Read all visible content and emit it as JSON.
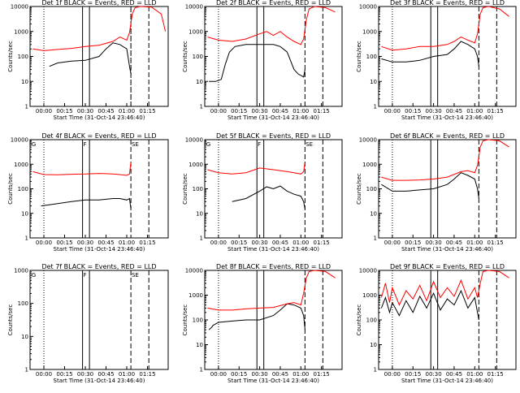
{
  "y_axis_label": "Counts/sec",
  "x_axis_label": "Start Time (31-Oct-14 23:46:40)",
  "x_tick_labels": [
    "00:00",
    "00:15",
    "00:30",
    "00:45",
    "01:00",
    "01:15"
  ],
  "y_tick_labels": [
    "1",
    "10",
    "100",
    "1000",
    "10000"
  ],
  "chart_data": [
    {
      "type": "line",
      "title": "Det 1f BLACK = Events, RED = LLD",
      "ylim": [
        1,
        10000
      ],
      "xlim_minutes": [
        -10,
        90
      ],
      "log_y": true,
      "markers": [],
      "dotted_lines": [
        0,
        63
      ],
      "solid_lines": [
        28,
        33
      ],
      "dashed_lines": [
        63,
        76
      ],
      "series": [
        {
          "name": "BLACK",
          "color": "#000000",
          "x": [
            4,
            10,
            20,
            30,
            40,
            45,
            50,
            55,
            60,
            62,
            63
          ],
          "y": [
            40,
            55,
            65,
            70,
            100,
            200,
            350,
            300,
            200,
            40,
            20
          ]
        },
        {
          "name": "RED",
          "color": "#ff0000",
          "x": [
            -8,
            0,
            10,
            20,
            30,
            40,
            50,
            55,
            60,
            62,
            64,
            66,
            70,
            78,
            85,
            88
          ],
          "y": [
            200,
            170,
            190,
            210,
            250,
            280,
            400,
            600,
            450,
            900,
            5000,
            9000,
            10000,
            9500,
            5000,
            1000
          ]
        }
      ]
    },
    {
      "type": "line",
      "title": "Det 2f BLACK = Events, RED = LLD",
      "ylim": [
        1,
        10000
      ],
      "xlim_minutes": [
        -10,
        90
      ],
      "log_y": true,
      "markers": [],
      "dotted_lines": [
        0
      ],
      "solid_lines": [
        28,
        33
      ],
      "dashed_lines": [
        63,
        76
      ],
      "series": [
        {
          "name": "BLACK",
          "color": "#000000",
          "x": [
            -7,
            -2,
            2,
            5,
            8,
            12,
            20,
            30,
            40,
            45,
            50,
            55,
            58,
            62,
            63
          ],
          "y": [
            10,
            10,
            12,
            50,
            150,
            250,
            300,
            300,
            300,
            250,
            150,
            30,
            20,
            15,
            30
          ]
        },
        {
          "name": "RED",
          "color": "#ff0000",
          "x": [
            -8,
            0,
            10,
            20,
            30,
            35,
            40,
            45,
            50,
            55,
            60,
            62,
            64,
            66,
            70,
            78,
            85
          ],
          "y": [
            600,
            450,
            400,
            500,
            800,
            1000,
            700,
            1000,
            600,
            400,
            300,
            500,
            3000,
            8000,
            10000,
            9000,
            6000
          ]
        }
      ]
    },
    {
      "type": "line",
      "title": "Det 3f BLACK = Events, RED = LLD",
      "ylim": [
        1,
        10000
      ],
      "xlim_minutes": [
        -10,
        90
      ],
      "log_y": true,
      "markers": [],
      "dotted_lines": [
        0
      ],
      "solid_lines": [
        28,
        33
      ],
      "dashed_lines": [
        63,
        76
      ],
      "series": [
        {
          "name": "BLACK",
          "color": "#000000",
          "x": [
            -8,
            0,
            10,
            20,
            30,
            40,
            45,
            50,
            55,
            60,
            62,
            63
          ],
          "y": [
            80,
            60,
            60,
            70,
            100,
            120,
            200,
            400,
            300,
            200,
            100,
            40
          ]
        },
        {
          "name": "RED",
          "color": "#ff0000",
          "x": [
            -8,
            0,
            10,
            20,
            30,
            40,
            45,
            50,
            55,
            60,
            62,
            64,
            66,
            70,
            78,
            85
          ],
          "y": [
            250,
            180,
            200,
            250,
            250,
            300,
            400,
            600,
            450,
            350,
            800,
            5000,
            9000,
            10000,
            8000,
            4000
          ]
        }
      ]
    },
    {
      "type": "line",
      "title": "Det 4f BLACK = Events, RED = LLD",
      "ylim": [
        1,
        10000
      ],
      "xlim_minutes": [
        -10,
        90
      ],
      "log_y": true,
      "markers": [
        "G",
        "F",
        "SE"
      ],
      "dotted_lines": [
        0
      ],
      "solid_lines": [
        28,
        33
      ],
      "dashed_lines": [
        63,
        76
      ],
      "series": [
        {
          "name": "BLACK",
          "color": "#000000",
          "x": [
            -2,
            10,
            20,
            30,
            40,
            50,
            55,
            60,
            62,
            63
          ],
          "y": [
            20,
            25,
            30,
            35,
            35,
            40,
            40,
            35,
            40,
            15
          ]
        },
        {
          "name": "RED",
          "color": "#ff0000",
          "x": [
            -8,
            0,
            10,
            20,
            30,
            40,
            50,
            55,
            60,
            62,
            63
          ],
          "y": [
            500,
            380,
            370,
            390,
            400,
            420,
            400,
            380,
            350,
            400,
            1200
          ]
        }
      ]
    },
    {
      "type": "line",
      "title": "Det 5f BLACK = Events, RED = LLD",
      "ylim": [
        1,
        10000
      ],
      "xlim_minutes": [
        -10,
        90
      ],
      "log_y": true,
      "markers": [
        "G",
        "F",
        "SE"
      ],
      "dotted_lines": [
        0
      ],
      "solid_lines": [
        28,
        33
      ],
      "dashed_lines": [
        63,
        76
      ],
      "series": [
        {
          "name": "BLACK",
          "color": "#000000",
          "x": [
            10,
            20,
            30,
            35,
            40,
            45,
            50,
            55,
            60,
            62,
            63
          ],
          "y": [
            30,
            40,
            80,
            120,
            100,
            130,
            80,
            60,
            50,
            30,
            15
          ]
        },
        {
          "name": "RED",
          "color": "#ff0000",
          "x": [
            -8,
            0,
            10,
            20,
            30,
            40,
            50,
            55,
            60,
            62,
            63
          ],
          "y": [
            600,
            450,
            400,
            450,
            700,
            600,
            500,
            450,
            400,
            500,
            1200
          ]
        }
      ]
    },
    {
      "type": "line",
      "title": "Det 6f BLACK = Events, RED = LLD",
      "ylim": [
        1,
        10000
      ],
      "xlim_minutes": [
        -10,
        90
      ],
      "log_y": true,
      "markers": [],
      "dotted_lines": [
        0
      ],
      "solid_lines": [
        28,
        33
      ],
      "dashed_lines": [
        63,
        76
      ],
      "series": [
        {
          "name": "BLACK",
          "color": "#000000",
          "x": [
            -8,
            0,
            10,
            20,
            30,
            40,
            45,
            50,
            55,
            60,
            62,
            63
          ],
          "y": [
            150,
            80,
            80,
            90,
            100,
            150,
            250,
            450,
            350,
            250,
            100,
            40
          ]
        },
        {
          "name": "RED",
          "color": "#ff0000",
          "x": [
            -8,
            0,
            10,
            20,
            30,
            40,
            50,
            55,
            60,
            62,
            64,
            66,
            70,
            78,
            85
          ],
          "y": [
            300,
            220,
            220,
            230,
            250,
            300,
            500,
            550,
            450,
            900,
            5000,
            9000,
            10000,
            9000,
            5000
          ]
        }
      ]
    },
    {
      "type": "line",
      "title": "Det 7f BLACK = Events, RED = LLD",
      "ylim": [
        1,
        1000
      ],
      "xlim_minutes": [
        -10,
        90
      ],
      "log_y": true,
      "markers": [
        "G",
        "F",
        "SE"
      ],
      "dotted_lines": [
        0
      ],
      "solid_lines": [
        28,
        33
      ],
      "dashed_lines": [
        63,
        76
      ],
      "series": []
    },
    {
      "type": "line",
      "title": "Det 8f BLACK = Events, RED = LLD",
      "ylim": [
        1,
        10000
      ],
      "xlim_minutes": [
        -10,
        90
      ],
      "log_y": true,
      "markers": [],
      "dotted_lines": [
        0
      ],
      "solid_lines": [
        28,
        33
      ],
      "dashed_lines": [
        63,
        76
      ],
      "series": [
        {
          "name": "BLACK",
          "color": "#000000",
          "x": [
            -7,
            -5,
            -4,
            0,
            10,
            20,
            30,
            40,
            45,
            50,
            55,
            60,
            62,
            63
          ],
          "y": [
            40,
            50,
            60,
            80,
            90,
            100,
            100,
            150,
            250,
            450,
            400,
            300,
            150,
            40
          ]
        },
        {
          "name": "RED",
          "color": "#ff0000",
          "x": [
            -8,
            0,
            10,
            20,
            30,
            40,
            50,
            55,
            60,
            62,
            64,
            66,
            70,
            78,
            85
          ],
          "y": [
            300,
            250,
            250,
            280,
            300,
            320,
            450,
            500,
            400,
            1200,
            5000,
            9000,
            10000,
            9000,
            5000
          ]
        }
      ]
    },
    {
      "type": "line",
      "title": "Det 9f BLACK = Events, RED = LLD",
      "ylim": [
        1,
        10000
      ],
      "xlim_minutes": [
        -10,
        90
      ],
      "log_y": true,
      "markers": [],
      "dotted_lines": [
        0
      ],
      "solid_lines": [
        28,
        33
      ],
      "dashed_lines": [
        63,
        76
      ],
      "series": [
        {
          "name": "BLACK",
          "color": "#000000",
          "x": [
            -8,
            -5,
            -2,
            0,
            5,
            10,
            15,
            20,
            25,
            30,
            35,
            40,
            45,
            50,
            55,
            60,
            62,
            63
          ],
          "y": [
            300,
            800,
            200,
            500,
            150,
            600,
            200,
            900,
            300,
            1200,
            250,
            700,
            400,
            1500,
            300,
            800,
            200,
            100
          ]
        },
        {
          "name": "RED",
          "color": "#ff0000",
          "x": [
            -8,
            -5,
            -2,
            0,
            5,
            10,
            15,
            20,
            25,
            30,
            35,
            40,
            45,
            50,
            55,
            60,
            62,
            64,
            66,
            70,
            78,
            85
          ],
          "y": [
            800,
            3000,
            500,
            2000,
            400,
            1500,
            700,
            2500,
            600,
            3500,
            800,
            2000,
            900,
            4000,
            700,
            2000,
            800,
            3000,
            9000,
            10000,
            9000,
            5000
          ]
        }
      ]
    }
  ]
}
